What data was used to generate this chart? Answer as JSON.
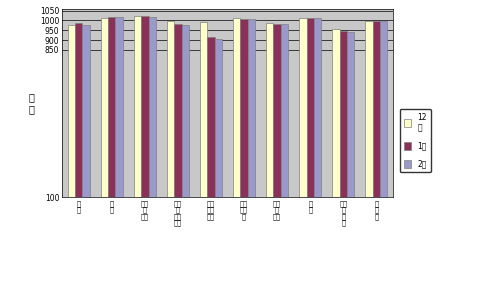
{
  "categories": [
    "食\n料",
    "住\n居",
    "光熱\n・\n水道",
    "家具\n・\n家事\n用品",
    "被服\n及び\n履物",
    "保健\n医療\n費",
    "交通\n・\n通信",
    "教\n育",
    "教養\n・\n娯\n楽",
    "諸\n雑\n費"
  ],
  "series_12": [
    975,
    1015,
    1025,
    997,
    992,
    1012,
    988,
    1013,
    955,
    998
  ],
  "series_1": [
    987,
    1018,
    1022,
    982,
    918,
    1010,
    984,
    1012,
    948,
    997
  ],
  "series_2": [
    977,
    1017,
    1020,
    975,
    908,
    1008,
    981,
    1012,
    940,
    995
  ],
  "color_12": "#FFFFCC",
  "color_1": "#8B3058",
  "color_2": "#9999CC",
  "edge_color": "#808080",
  "ylim_min": 100,
  "ylim_max": 1060,
  "yticks": [
    100,
    850,
    900,
    950,
    1000,
    1050
  ],
  "ytick_labels": [
    "100",
    "850",
    "900",
    "950",
    "1000",
    "1050"
  ],
  "ylabel": "指\n数",
  "bg_color": "#C8C8C8",
  "outer_color": "#FFFFFF",
  "legend_12": "12\n月",
  "legend_1": "1月",
  "legend_2": "2月",
  "bar_width": 0.22,
  "grid_color": "#000000",
  "n_cats": 10
}
